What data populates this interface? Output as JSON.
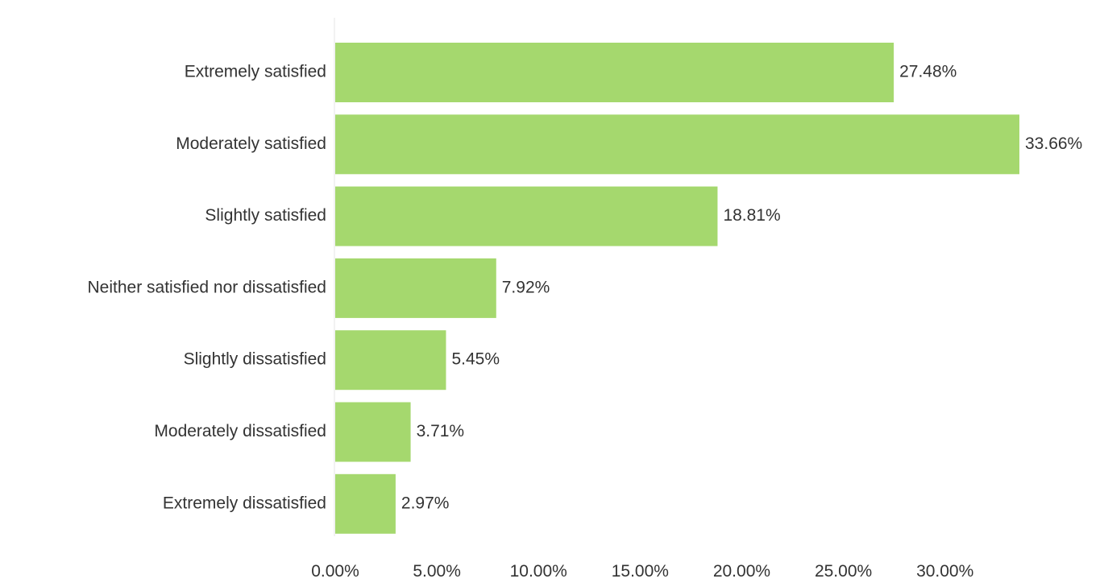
{
  "chart_data": {
    "type": "bar",
    "orientation": "horizontal",
    "categories": [
      "Extremely satisfied",
      "Moderately satisfied",
      "Slightly satisfied",
      "Neither satisfied nor dissatisfied",
      "Slightly dissatisfied",
      "Moderately dissatisfied",
      "Extremely dissatisfied"
    ],
    "values": [
      27.48,
      33.66,
      18.81,
      7.92,
      5.45,
      3.71,
      2.97
    ],
    "value_labels": [
      "27.48%",
      "33.66%",
      "18.81%",
      "7.92%",
      "5.45%",
      "3.71%",
      "2.97%"
    ],
    "x_ticks": [
      0,
      5,
      10,
      15,
      20,
      25,
      30
    ],
    "x_tick_labels": [
      "0.00%",
      "5.00%",
      "10.00%",
      "15.00%",
      "20.00%",
      "25.00%",
      "30.00%"
    ],
    "xlim": [
      0,
      33.66
    ],
    "bar_color": "#a5d86e",
    "grid": false,
    "legend": false
  }
}
